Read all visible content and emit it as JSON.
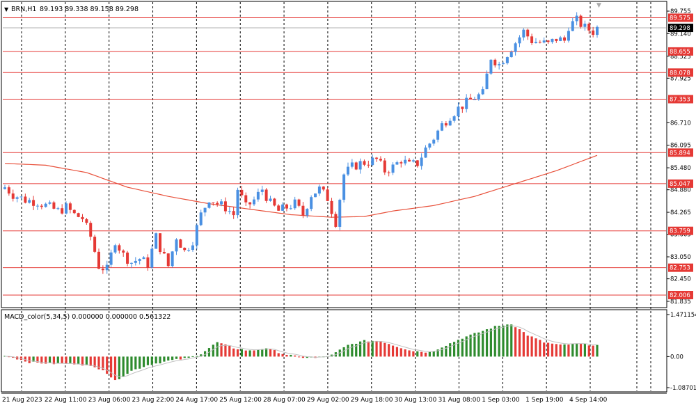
{
  "header": {
    "menu_icon": "triangle-down-icon",
    "symbol": "BRN,H1",
    "ohlc": "89.193 89.338 89.158 89.298",
    "scroll_marker_icon": "triangle-down-icon"
  },
  "macd_header": {
    "label": "MACD_color(5,34,5) 0.000000 0.000000 0.561322"
  },
  "colors": {
    "bull": "#4a90e2",
    "bear": "#e53935",
    "ma": "#e8503a",
    "level_line": "#e53935",
    "macd_pos_up": "#2e8b2e",
    "macd_pos_down": "#e53935",
    "signal": "#c0c0c0",
    "grid": "#000000",
    "price_badge": "#000000"
  },
  "chart_data": [
    {
      "type": "candlestick",
      "title": "BRN,H1",
      "ylim": [
        81.835,
        89.755
      ],
      "price_ticks": [
        "89.755",
        "89.140",
        "88.525",
        "87.925",
        "86.710",
        "86.095",
        "85.480",
        "84.880",
        "84.265",
        "83.665",
        "83.050",
        "82.450",
        "81.835"
      ],
      "levels": [
        89.575,
        88.655,
        88.078,
        87.353,
        85.894,
        85.047,
        83.759,
        82.753,
        82.006
      ],
      "level_labels": [
        "89.575",
        "88.655",
        "88.078",
        "87.353",
        "85.894",
        "85.047",
        "83.759",
        "82.753",
        "82.006"
      ],
      "current_price": 89.298,
      "current_price_label": "89.298",
      "x_labels": [
        "21 Aug 2023",
        "22 Aug 11:00",
        "23 Aug 06:00",
        "23 Aug 22:00",
        "24 Aug 17:00",
        "25 Aug 12:00",
        "28 Aug 07:00",
        "29 Aug 02:00",
        "29 Aug 18:00",
        "30 Aug 13:00",
        "31 Aug 08:00",
        "1 Sep 03:00",
        "1 Sep 19:00",
        "4 Sep 14:00"
      ],
      "close_path": [
        [
          0,
          84.95
        ],
        [
          2,
          84.75
        ],
        [
          5,
          84.6
        ],
        [
          8,
          84.55
        ],
        [
          11,
          84.4
        ],
        [
          13,
          84.3
        ],
        [
          15,
          84.4
        ],
        [
          17,
          84.2
        ],
        [
          19,
          84.1
        ],
        [
          21,
          83.6
        ],
        [
          23,
          82.8
        ],
        [
          25,
          82.7
        ],
        [
          27,
          83.5
        ],
        [
          29,
          83.1
        ],
        [
          31,
          82.9
        ],
        [
          33,
          83.0
        ],
        [
          35,
          82.85
        ],
        [
          37,
          83.6
        ],
        [
          38,
          83.3
        ],
        [
          40,
          82.8
        ],
        [
          42,
          83.6
        ],
        [
          44,
          83.2
        ],
        [
          46,
          83.5
        ],
        [
          48,
          84.2
        ],
        [
          50,
          84.65
        ],
        [
          52,
          84.5
        ],
        [
          54,
          84.4
        ],
        [
          56,
          84.2
        ],
        [
          57,
          84.9
        ],
        [
          59,
          84.4
        ],
        [
          61,
          84.6
        ],
        [
          63,
          84.9
        ],
        [
          65,
          84.5
        ],
        [
          67,
          84.3
        ],
        [
          69,
          84.4
        ],
        [
          71,
          84.5
        ],
        [
          73,
          84.2
        ],
        [
          75,
          84.75
        ],
        [
          77,
          84.9
        ],
        [
          79,
          84.65
        ],
        [
          81,
          84.0
        ],
        [
          83,
          85.3
        ],
        [
          85,
          85.5
        ],
        [
          87,
          85.6
        ],
        [
          89,
          85.65
        ],
        [
          91,
          85.7
        ],
        [
          93,
          85.4
        ],
        [
          95,
          85.5
        ],
        [
          97,
          85.7
        ],
        [
          99,
          85.55
        ],
        [
          101,
          85.6
        ],
        [
          103,
          86.0
        ],
        [
          105,
          86.3
        ],
        [
          107,
          86.65
        ],
        [
          109,
          86.9
        ],
        [
          111,
          87.1
        ],
        [
          113,
          87.25
        ],
        [
          115,
          87.4
        ],
        [
          117,
          87.5
        ],
        [
          119,
          88.5
        ],
        [
          121,
          88.3
        ],
        [
          123,
          88.6
        ],
        [
          125,
          88.9
        ],
        [
          127,
          89.2
        ],
        [
          129,
          88.95
        ],
        [
          131,
          88.9
        ],
        [
          133,
          88.85
        ],
        [
          135,
          89.0
        ],
        [
          137,
          88.95
        ],
        [
          138,
          89.35
        ],
        [
          140,
          89.5
        ],
        [
          142,
          89.3
        ],
        [
          144,
          89.2
        ],
        [
          145,
          89.298
        ]
      ],
      "ma_path": [
        [
          0,
          85.6
        ],
        [
          10,
          85.55
        ],
        [
          20,
          85.35
        ],
        [
          30,
          84.95
        ],
        [
          40,
          84.7
        ],
        [
          50,
          84.5
        ],
        [
          60,
          84.35
        ],
        [
          70,
          84.2
        ],
        [
          80,
          84.13
        ],
        [
          88,
          84.15
        ],
        [
          95,
          84.3
        ],
        [
          105,
          84.45
        ],
        [
          115,
          84.7
        ],
        [
          125,
          85.05
        ],
        [
          135,
          85.4
        ],
        [
          145,
          85.82
        ]
      ]
    },
    {
      "type": "bar",
      "title": "MACD_color(5,34,5)",
      "ylim": [
        -1.087,
        1.471154
      ],
      "y_ticks": [
        "1.471154",
        "0.00",
        "-1.087012"
      ],
      "points": [
        [
          0,
          0.05
        ],
        [
          6,
          -0.2
        ],
        [
          12,
          -0.25
        ],
        [
          18,
          -0.25
        ],
        [
          24,
          -0.45
        ],
        [
          27,
          -0.85
        ],
        [
          31,
          -0.5
        ],
        [
          35,
          -0.3
        ],
        [
          40,
          -0.15
        ],
        [
          45,
          -0.05
        ],
        [
          48,
          0.1
        ],
        [
          52,
          0.5
        ],
        [
          56,
          0.3
        ],
        [
          60,
          0.2
        ],
        [
          64,
          0.3
        ],
        [
          68,
          0.1
        ],
        [
          72,
          -0.02
        ],
        [
          76,
          -0.05
        ],
        [
          80,
          0.05
        ],
        [
          84,
          0.4
        ],
        [
          88,
          0.55
        ],
        [
          92,
          0.55
        ],
        [
          96,
          0.35
        ],
        [
          100,
          0.2
        ],
        [
          104,
          0.15
        ],
        [
          108,
          0.4
        ],
        [
          112,
          0.65
        ],
        [
          116,
          0.85
        ],
        [
          120,
          1.05
        ],
        [
          124,
          1.15
        ],
        [
          128,
          0.75
        ],
        [
          132,
          0.5
        ],
        [
          136,
          0.4
        ],
        [
          140,
          0.45
        ],
        [
          145,
          0.4
        ]
      ]
    }
  ]
}
